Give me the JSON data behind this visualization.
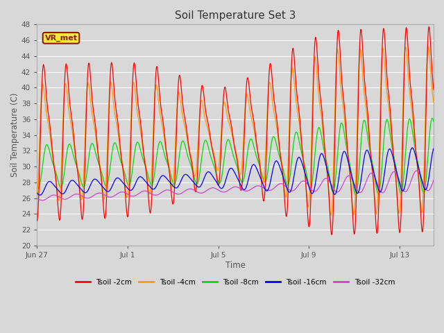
{
  "title": "Soil Temperature Set 3",
  "xlabel": "Time",
  "ylabel": "Soil Temperature (C)",
  "ylim": [
    20,
    48
  ],
  "yticks": [
    20,
    22,
    24,
    26,
    28,
    30,
    32,
    34,
    36,
    38,
    40,
    42,
    44,
    46,
    48
  ],
  "background_color": "#d8d8d8",
  "plot_bg_color": "#d8d8d8",
  "grid_color": "#ffffff",
  "annotation_text": "VR_met",
  "annotation_bg": "#f5e642",
  "annotation_border": "#8B2000",
  "series": [
    {
      "label": "Tsoil -2cm",
      "color": "#ff0000"
    },
    {
      "label": "Tsoil -4cm",
      "color": "#ff9900"
    },
    {
      "label": "Tsoil -8cm",
      "color": "#00dd00"
    },
    {
      "label": "Tsoil -16cm",
      "color": "#0000ee"
    },
    {
      "label": "Tsoil -32cm",
      "color": "#cc44cc"
    }
  ],
  "date_labels": [
    "Jun 27",
    "Jul 1",
    "Jul 5",
    "Jul 9",
    "Jul 13"
  ],
  "date_label_offsets": [
    0,
    4,
    8,
    12,
    16
  ],
  "total_days": 17.5
}
